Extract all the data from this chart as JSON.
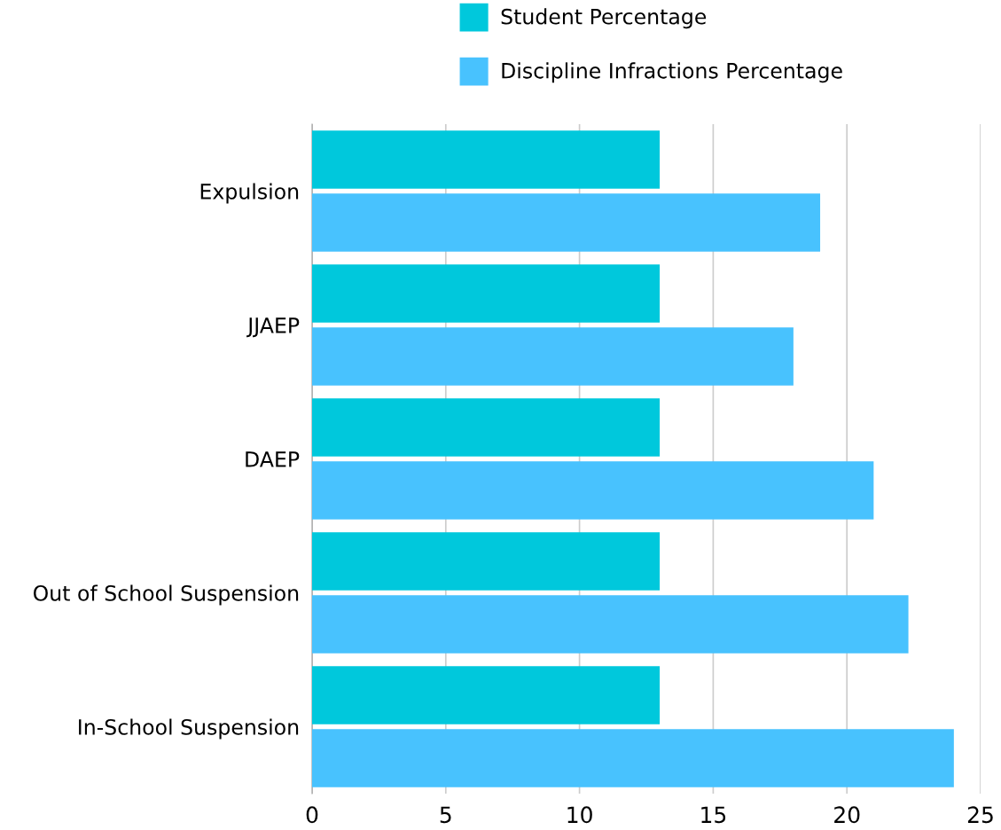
{
  "chart_data": {
    "type": "bar",
    "orientation": "horizontal",
    "categories": [
      "Expulsion",
      "JJAEP",
      "DAEP",
      "Out of School Suspension",
      "In-School Suspension"
    ],
    "series": [
      {
        "name": "Student Percentage",
        "color": "#00c8dc",
        "values": [
          13,
          13,
          13,
          13,
          13
        ]
      },
      {
        "name": "Discipline Infractions Percentage",
        "color": "#48c2fe",
        "values": [
          19,
          18,
          21,
          22.3,
          24
        ]
      }
    ],
    "xlim": [
      0,
      25
    ],
    "xticks": [
      0,
      5,
      10,
      15,
      20,
      25
    ],
    "grid": "x",
    "legend": "top"
  }
}
